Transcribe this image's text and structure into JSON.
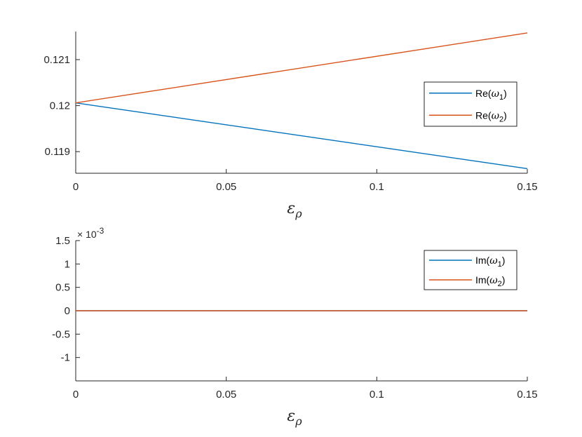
{
  "chart_data": [
    {
      "type": "line",
      "x": [
        0,
        0.15
      ],
      "xlim": [
        0,
        0.15
      ],
      "ylim": [
        0.11853,
        0.12161
      ],
      "xticks": [
        0,
        0.05,
        0.1,
        0.15
      ],
      "xtick_labels": [
        "0",
        "0.05",
        "0.1",
        "0.15"
      ],
      "yticks": [
        0.119,
        0.12,
        0.121
      ],
      "ytick_labels": [
        "0.119",
        "0.12",
        "0.121"
      ],
      "xlabel_main": "ε",
      "xlabel_sub": "ρ",
      "legend_position": "right",
      "grid": false,
      "series": [
        {
          "name": "Re(ω1)",
          "name_main": "Re(",
          "name_sym": "ω",
          "name_sub": "1",
          "name_close": ")",
          "color": "#0072BD",
          "values": [
            0.12006,
            0.11863
          ]
        },
        {
          "name": "Re(ω2)",
          "name_main": "Re(",
          "name_sym": "ω",
          "name_sub": "2",
          "name_close": ")",
          "color": "#D95319",
          "values": [
            0.12006,
            0.12158
          ]
        }
      ]
    },
    {
      "type": "line",
      "x": [
        0,
        0.15
      ],
      "xlim": [
        0,
        0.15
      ],
      "ylim": [
        -0.0015,
        0.0015
      ],
      "xticks": [
        0,
        0.05,
        0.1,
        0.15
      ],
      "xtick_labels": [
        "0",
        "0.05",
        "0.1",
        "0.15"
      ],
      "yticks": [
        -0.001,
        -0.0005,
        0,
        0.0005,
        0.001,
        0.0015
      ],
      "ytick_labels": [
        "-1",
        "-0.5",
        "0",
        "0.5",
        "1",
        "1.5"
      ],
      "y_exponent_base": "× 10",
      "y_exponent_power": "-3",
      "xlabel_main": "ε",
      "xlabel_sub": "ρ",
      "legend_position": "top-right",
      "grid": false,
      "series": [
        {
          "name": "Im(ω1)",
          "name_main": "Im(",
          "name_sym": "ω",
          "name_sub": "1",
          "name_close": ")",
          "color": "#0072BD",
          "values": [
            0,
            0
          ]
        },
        {
          "name": "Im(ω2)",
          "name_main": "Im(",
          "name_sym": "ω",
          "name_sub": "2",
          "name_close": ")",
          "color": "#D95319",
          "values": [
            0,
            0
          ]
        }
      ]
    }
  ]
}
